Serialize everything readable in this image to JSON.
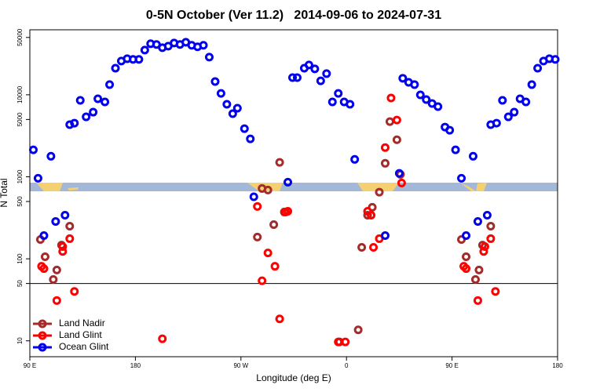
{
  "chart_data": {
    "type": "scatter",
    "title": "0-5N October (Ver 11.2)   2014-09-06 to 2024-07-31",
    "xlabel": "Longitude (deg E)",
    "ylabel": "N Total",
    "xlim": [
      90,
      540
    ],
    "xticks": [
      {
        "value": 90,
        "label": "90 E"
      },
      180,
      {
        "value": 270,
        "label": "90 W"
      },
      {
        "value": 360,
        "label": "0"
      },
      {
        "value": 450,
        "label": "90 E"
      },
      {
        "value": 540,
        "label": "180"
      }
    ],
    "ylim": [
      6.4,
      62000
    ],
    "log_y": true,
    "yticks": [
      10,
      50,
      100,
      500,
      1000,
      5000,
      10000,
      50000
    ],
    "hline": 50,
    "legend": "lower left",
    "series": [
      {
        "name": "Land Nadir",
        "color": "#a52a2a",
        "x": [
          99,
          103,
          110,
          113,
          117,
          124,
          284,
          288,
          293,
          298,
          303,
          307,
          354,
          370,
          373,
          378,
          382,
          388,
          393,
          397,
          403,
          406,
          458,
          462,
          470,
          473,
          476,
          483
        ],
        "values": [
          172,
          106,
          56,
          73,
          147,
          250,
          184,
          720,
          690,
          261,
          1500,
          372,
          9.7,
          13.6,
          138,
          340,
          425,
          650,
          1460,
          4710,
          2830,
          1070,
          172,
          106,
          56,
          73,
          147,
          250
        ]
      },
      {
        "name": "Land Glint",
        "color": "#ff0000",
        "x": [
          100,
          102,
          118,
          118,
          124,
          128,
          113,
          203,
          284,
          288,
          293,
          299,
          303,
          308,
          310,
          353,
          359,
          378,
          381,
          383,
          388,
          393,
          398,
          403,
          407,
          460,
          462,
          472,
          477,
          478,
          483,
          487
        ],
        "values": [
          81,
          76,
          123,
          141,
          176,
          40,
          31,
          10.6,
          435,
          54,
          118,
          81,
          18.5,
          372,
          380,
          9.7,
          9.7,
          380,
          340,
          138,
          176,
          2270,
          9140,
          4920,
          840,
          81,
          76,
          31,
          123,
          141,
          176,
          40
        ]
      },
      {
        "name": "Ocean Glint",
        "color": "#0000ee",
        "x": [
          93,
          97,
          108,
          102,
          112,
          120,
          124,
          128,
          133,
          138,
          144,
          148,
          154,
          158,
          163,
          168,
          173,
          178,
          183,
          188,
          193,
          198,
          203,
          208,
          213,
          218,
          223,
          228,
          233,
          238,
          243,
          248,
          253,
          258,
          263,
          267,
          273,
          278,
          281,
          310,
          314,
          318,
          324,
          328,
          333,
          343,
          338,
          348,
          353,
          358,
          363,
          367,
          393,
          405,
          408,
          413,
          418,
          423,
          428,
          433,
          438,
          444,
          448,
          453,
          458,
          462,
          468,
          472,
          480,
          483,
          488,
          493,
          498,
          503,
          508,
          513,
          518,
          523,
          528,
          533,
          538
        ],
        "values": [
          2130,
          960,
          1780,
          192,
          285,
          340,
          4320,
          4510,
          8550,
          5380,
          6140,
          8940,
          8180,
          13300,
          21100,
          25800,
          27500,
          27000,
          27000,
          35100,
          41900,
          41000,
          37500,
          39200,
          42800,
          41000,
          43750,
          40100,
          38400,
          40100,
          28800,
          14500,
          10400,
          7660,
          5880,
          6860,
          3860,
          2900,
          570,
          860,
          16200,
          16200,
          21100,
          23100,
          20700,
          18100,
          14800,
          8180,
          10400,
          8180,
          7660,
          1630,
          192,
          1100,
          15900,
          14200,
          13300,
          9980,
          8740,
          7830,
          7170,
          4040,
          3700,
          2130,
          960,
          192,
          1780,
          285,
          340,
          4320,
          4510,
          8550,
          5380,
          6140,
          8940,
          8180,
          13300,
          21100,
          25800,
          27500,
          27000
        ]
      }
    ]
  }
}
